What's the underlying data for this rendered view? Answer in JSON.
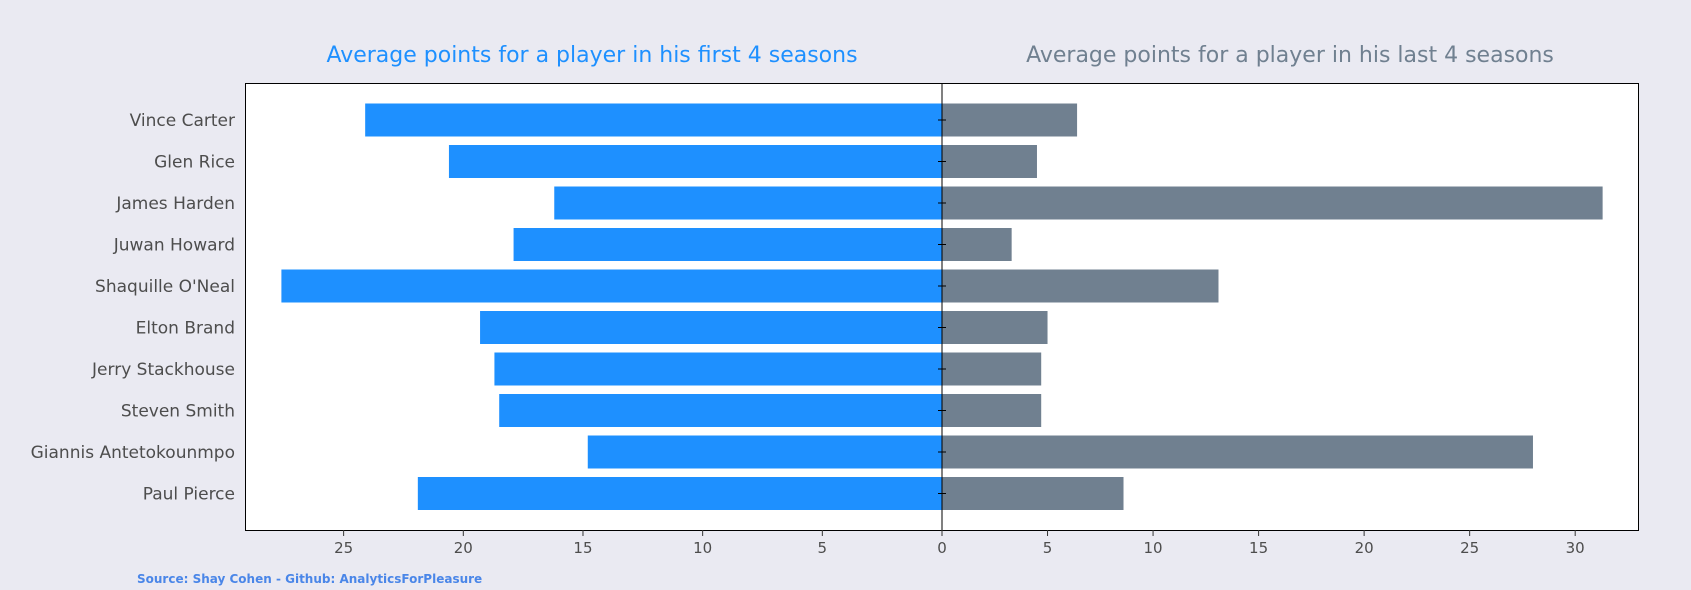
{
  "chart_data": {
    "type": "bar",
    "orientation": "horizontal-diverging",
    "categories": [
      "Vince Carter",
      "Glen Rice",
      "James Harden",
      "Juwan Howard",
      "Shaquille O'Neal",
      "Elton Brand",
      "Jerry Stackhouse",
      "Steven Smith",
      "Giannis Antetokounmpo",
      "Paul Pierce"
    ],
    "series": [
      {
        "name": "Average points for a player in his first 4 seasons",
        "side": "left",
        "color": "#1e90ff",
        "values": [
          24.1,
          20.6,
          16.2,
          17.9,
          27.6,
          19.3,
          18.7,
          18.5,
          14.8,
          21.9
        ]
      },
      {
        "name": "Average points for a player in his last 4 seasons",
        "side": "right",
        "color": "#708090",
        "values": [
          6.4,
          4.5,
          31.3,
          3.3,
          13.1,
          5.0,
          4.7,
          4.7,
          28.0,
          8.6
        ]
      }
    ],
    "left_axis": {
      "xlim": [
        29.1,
        0
      ],
      "ticks": [
        25,
        20,
        15,
        10,
        5,
        0
      ]
    },
    "right_axis": {
      "xlim": [
        0,
        33.0
      ],
      "ticks": [
        5,
        10,
        15,
        20,
        25,
        30
      ]
    },
    "grid": false,
    "source": "Source: Shay Cohen - Github: AnalyticsForPleasure"
  },
  "colors": {
    "background": "#eaeaf2",
    "plot_bg": "#ffffff",
    "left": "#1e90ff",
    "right": "#708090",
    "source": "#4a86e8"
  }
}
